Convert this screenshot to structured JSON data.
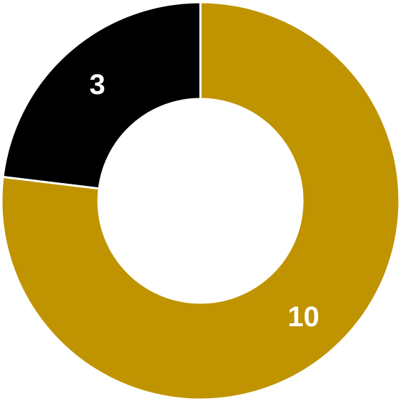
{
  "chart_data": {
    "type": "pie",
    "variant": "donut",
    "slices": [
      {
        "label": "",
        "value": 10,
        "value_label": "10",
        "color": "#C09300"
      },
      {
        "label": "",
        "value": 3,
        "value_label": "3",
        "color": "#000000"
      }
    ],
    "legend": "none",
    "title": ""
  }
}
